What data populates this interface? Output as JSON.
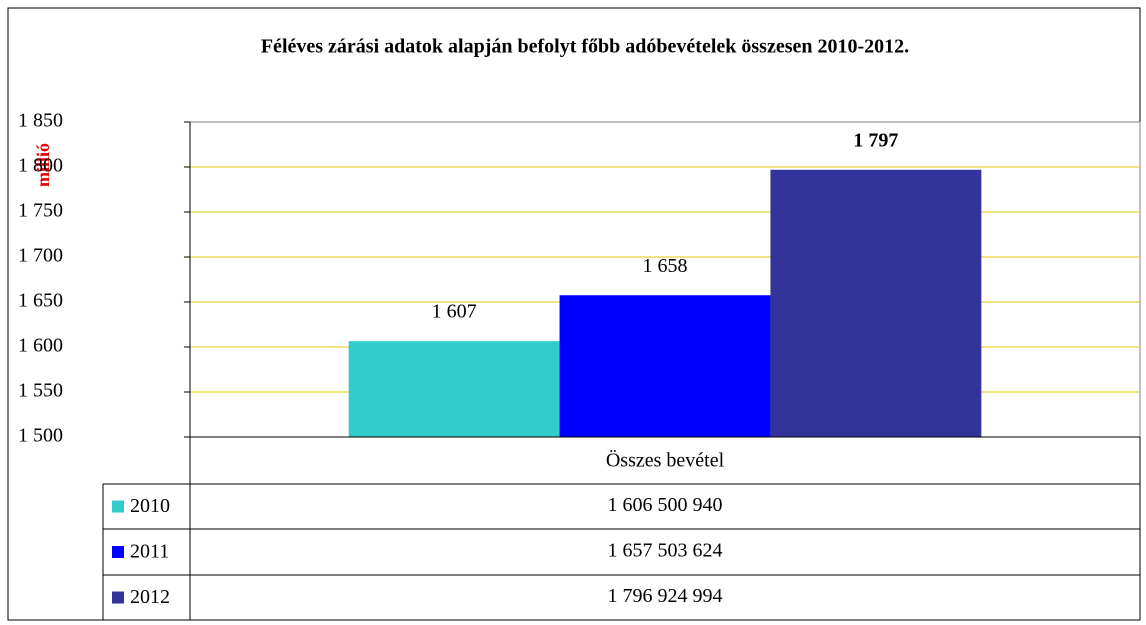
{
  "chart_data": {
    "type": "bar",
    "title": "Féléves zárási adatok alapján befolyt főbb adóbevételek összesen 2010-2012.",
    "ylabel": "millió",
    "categories": [
      "Összes bevétel"
    ],
    "series": [
      {
        "name": "2010",
        "color": "#33cccc",
        "values": [
          1606.50094
        ],
        "value_labels": [
          "1 607"
        ],
        "table_values": [
          "1 606 500 940"
        ]
      },
      {
        "name": "2011",
        "color": "#0000ff",
        "values": [
          1657.503624
        ],
        "value_labels": [
          "1 658"
        ],
        "table_values": [
          "1 657 503 624"
        ]
      },
      {
        "name": "2012",
        "color": "#333399",
        "values": [
          1796.924994
        ],
        "value_labels": [
          "1 797"
        ],
        "table_values": [
          "1 796 924 994"
        ],
        "bold_label": true
      }
    ],
    "ylim": [
      1500,
      1850
    ],
    "yticks": [
      {
        "value": 1500,
        "label": "1 500"
      },
      {
        "value": 1550,
        "label": "1 550"
      },
      {
        "value": 1600,
        "label": "1 600"
      },
      {
        "value": 1650,
        "label": "1 650"
      },
      {
        "value": 1700,
        "label": "1 700"
      },
      {
        "value": 1750,
        "label": "1 750"
      },
      {
        "value": 1800,
        "label": "1 800"
      },
      {
        "value": 1850,
        "label": "1 850"
      }
    ],
    "grid": true,
    "grid_color": "#e6c800"
  }
}
